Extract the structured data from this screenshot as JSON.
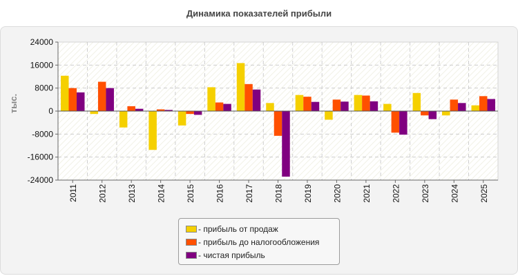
{
  "chart_data": {
    "type": "bar",
    "title": "Динамика показателей прибыли",
    "ylabel": "тыс.",
    "xlabel": "",
    "ylim": [
      -24000,
      24000
    ],
    "yticks": [
      24000,
      16000,
      8000,
      0,
      -8000,
      -16000,
      -24000
    ],
    "categories": [
      "2011",
      "2012",
      "2013",
      "2014",
      "2015",
      "2016",
      "2017",
      "2018",
      "2019",
      "2020",
      "2021",
      "2022",
      "2023",
      "2024",
      "2025"
    ],
    "grid": true,
    "legend_position": "bottom",
    "series": [
      {
        "name": "- прибыль от продаж",
        "color": "#f5d000",
        "values": [
          12300,
          -1000,
          -5700,
          -13500,
          -5000,
          8300,
          16700,
          2800,
          5600,
          -3000,
          5600,
          2500,
          6300,
          -1500,
          2000
        ]
      },
      {
        "name": "- прибыль до налогообложения",
        "color": "#ff5000",
        "values": [
          8000,
          10200,
          1700,
          600,
          -1000,
          3000,
          9400,
          -8600,
          5000,
          4000,
          5400,
          -7500,
          -1500,
          4000,
          5200
        ]
      },
      {
        "name": "- чистая прибыль",
        "color": "#800080",
        "values": [
          6500,
          8000,
          800,
          400,
          -1300,
          2500,
          7500,
          -22800,
          3200,
          3300,
          3400,
          -8200,
          -2800,
          2800,
          4200
        ]
      }
    ]
  }
}
